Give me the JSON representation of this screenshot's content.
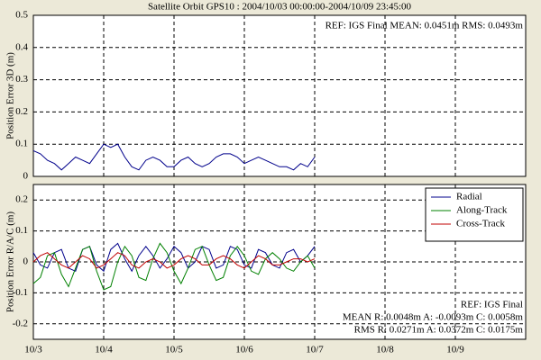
{
  "chart_data": [
    {
      "type": "line",
      "title": "Satellite Orbit GPS10 : 2004/10/03 00:00:00-2004/10/09 23:45:00",
      "ylabel": "Position Error 3D (m)",
      "annotation": "REF: IGS Final  MEAN:  0.0451m RMS:  0.0493m",
      "xlim": [
        0,
        7
      ],
      "ylim": [
        0,
        0.5
      ],
      "yticks": [
        0,
        0.1,
        0.2,
        0.3,
        0.4,
        0.5
      ],
      "grid": true,
      "x": [
        0,
        0.1,
        0.2,
        0.3,
        0.4,
        0.5,
        0.6,
        0.7,
        0.8,
        0.9,
        1,
        1.1,
        1.2,
        1.3,
        1.4,
        1.5,
        1.6,
        1.7,
        1.8,
        1.9,
        2,
        2.1,
        2.2,
        2.3,
        2.4,
        2.5,
        2.6,
        2.7,
        2.8,
        2.9,
        3,
        3.1,
        3.2,
        3.3,
        3.4,
        3.5,
        3.6,
        3.7,
        3.8,
        3.9,
        4
      ],
      "values": [
        0.08,
        0.07,
        0.05,
        0.04,
        0.02,
        0.04,
        0.06,
        0.05,
        0.04,
        0.07,
        0.1,
        0.09,
        0.1,
        0.06,
        0.03,
        0.02,
        0.05,
        0.06,
        0.05,
        0.03,
        0.03,
        0.05,
        0.06,
        0.04,
        0.03,
        0.04,
        0.06,
        0.07,
        0.07,
        0.06,
        0.04,
        0.05,
        0.06,
        0.05,
        0.04,
        0.03,
        0.03,
        0.02,
        0.04,
        0.03,
        0.06
      ],
      "color": "#00008b"
    },
    {
      "type": "line",
      "ylabel": "Position Error R/A/C (m)",
      "annotations": [
        "REF: IGS Final",
        "MEAN R: 0.0048m A: -0.0093m C: 0.0058m",
        "RMS R: 0.0271m A: 0.0372m C: 0.0175m"
      ],
      "xlim": [
        0,
        7
      ],
      "ylim": [
        -0.25,
        0.25
      ],
      "yticks": [
        -0.2,
        -0.1,
        0,
        0.1,
        0.2
      ],
      "grid": true,
      "xticks": [
        {
          "value": 0,
          "label": "10/3"
        },
        {
          "value": 1,
          "label": "10/4"
        },
        {
          "value": 2,
          "label": "10/5"
        },
        {
          "value": 3,
          "label": "10/6"
        },
        {
          "value": 4,
          "label": "10/7"
        },
        {
          "value": 5,
          "label": "10/8"
        },
        {
          "value": 6,
          "label": "10/9"
        }
      ],
      "legend": "upper right",
      "x": [
        0,
        0.1,
        0.2,
        0.3,
        0.4,
        0.5,
        0.6,
        0.7,
        0.8,
        0.9,
        1,
        1.1,
        1.2,
        1.3,
        1.4,
        1.5,
        1.6,
        1.7,
        1.8,
        1.9,
        2,
        2.1,
        2.2,
        2.3,
        2.4,
        2.5,
        2.6,
        2.7,
        2.8,
        2.9,
        3,
        3.1,
        3.2,
        3.3,
        3.4,
        3.5,
        3.6,
        3.7,
        3.8,
        3.9,
        4
      ],
      "series": [
        {
          "name": "Radial",
          "color": "#00008b",
          "values": [
            0.03,
            -0.01,
            -0.02,
            0.03,
            0.04,
            -0.02,
            -0.03,
            0.04,
            0.05,
            -0.01,
            -0.03,
            0.04,
            0.06,
            0.01,
            -0.03,
            0.02,
            0.05,
            0.02,
            -0.02,
            0.01,
            0.05,
            0.03,
            -0.02,
            0,
            0.05,
            0.04,
            -0.02,
            -0.01,
            0.05,
            0.04,
            -0.01,
            -0.02,
            0.04,
            0.03,
            -0.01,
            -0.02,
            0.03,
            0.04,
            0,
            0.02,
            0.05
          ]
        },
        {
          "name": "Along-Track",
          "color": "#008000",
          "values": [
            -0.07,
            -0.05,
            0.02,
            0.03,
            -0.04,
            -0.08,
            -0.02,
            0.04,
            0.05,
            -0.03,
            -0.09,
            -0.08,
            0,
            0.05,
            0.02,
            -0.05,
            -0.06,
            0.01,
            0.06,
            0.03,
            -0.03,
            -0.07,
            -0.02,
            0.04,
            0.05,
            -0.01,
            -0.06,
            -0.05,
            0.02,
            0.05,
            0.02,
            -0.03,
            -0.04,
            0.01,
            0.03,
            0.01,
            -0.02,
            -0.03,
            0,
            0.02,
            -0.02
          ]
        },
        {
          "name": "Cross-Track",
          "color": "#c00000",
          "values": [
            0,
            0.02,
            0.03,
            0.01,
            -0.01,
            -0.02,
            0,
            0.02,
            0.01,
            -0.02,
            -0.01,
            0.01,
            0.03,
            0.02,
            -0.01,
            -0.02,
            0,
            0.01,
            0,
            -0.02,
            -0.01,
            0.01,
            0.02,
            0.01,
            -0.01,
            -0.01,
            0.01,
            0.02,
            0.01,
            -0.01,
            -0.02,
            0,
            0.02,
            0.01,
            -0.01,
            -0.01,
            0,
            0.01,
            0.01,
            0,
            0.01
          ]
        }
      ]
    }
  ]
}
